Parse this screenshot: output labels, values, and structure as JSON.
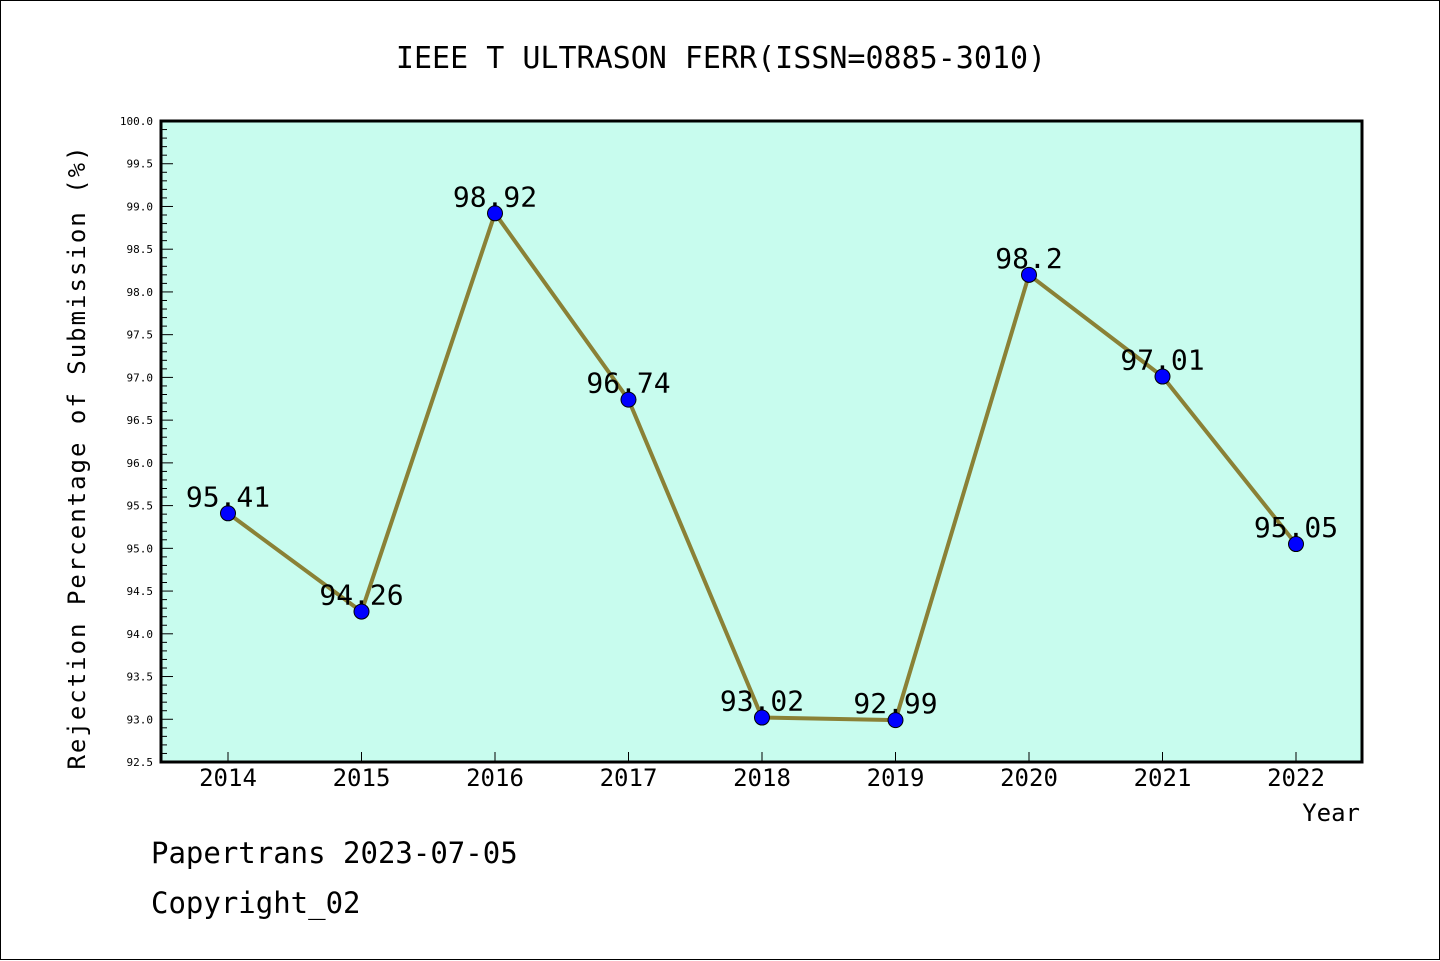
{
  "chart_data": {
    "type": "line",
    "title": "IEEE T ULTRASON FERR(ISSN=0885-3010)",
    "xlabel": "Year",
    "ylabel": "Rejection Percentage of Submission (%)",
    "categories": [
      "2014",
      "2015",
      "2016",
      "2017",
      "2018",
      "2019",
      "2020",
      "2021",
      "2022"
    ],
    "values": [
      95.41,
      94.26,
      98.92,
      96.74,
      93.02,
      92.99,
      98.2,
      97.01,
      95.05
    ],
    "data_labels": [
      "95.41",
      "94.26",
      "98.92",
      "96.74",
      "93.02",
      "92.99",
      "98.2",
      "97.01",
      "95.05"
    ],
    "ylim": [
      92.5,
      100.0
    ],
    "y_ticks": [
      "92.5",
      "93.0",
      "93.5",
      "94.0",
      "94.5",
      "95.0",
      "95.5",
      "96.0",
      "96.5",
      "97.0",
      "97.5",
      "98.0",
      "98.5",
      "99.0",
      "99.5",
      "100.0"
    ],
    "grid": false,
    "legend": "none",
    "colors": {
      "plot_background": "#c8fcee",
      "line": "#8a8136",
      "marker": "#0000ff"
    }
  },
  "footer": {
    "line1": "Papertrans 2023-07-05",
    "line2": "Copyright_02"
  }
}
